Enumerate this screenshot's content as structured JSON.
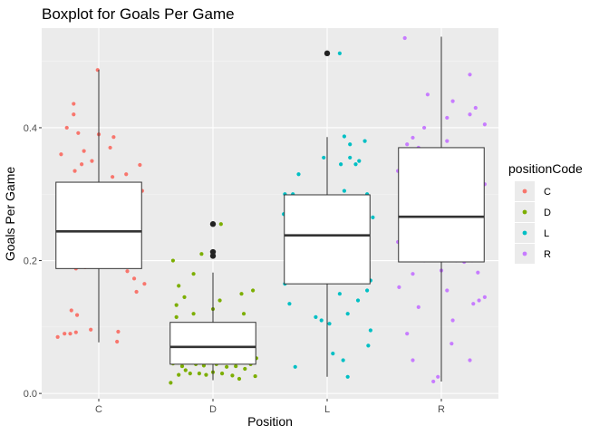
{
  "chart_data": {
    "type": "boxplot",
    "title": "Boxplot for Goals Per Game",
    "xlabel": "Position",
    "ylabel": "Goals Per Game",
    "categories": [
      "C",
      "D",
      "L",
      "R"
    ],
    "yticks": [
      0.0,
      0.2,
      0.4
    ],
    "ytick_labels": [
      "0.0",
      "0.2",
      "0.4"
    ],
    "ylim": [
      -0.008,
      0.55
    ],
    "grid": true,
    "legend": {
      "title": "positionCode",
      "position": "right",
      "entries": [
        "C",
        "D",
        "L",
        "R"
      ]
    },
    "colors": {
      "C": "#F8766D",
      "D": "#7CAE00",
      "L": "#00BFC4",
      "R": "#C77CFF",
      "outlier": "#222222"
    },
    "boxes": [
      {
        "name": "C",
        "q1": 0.188,
        "median": 0.244,
        "q3": 0.318,
        "whisker_low": 0.077,
        "whisker_high": 0.487,
        "outliers": []
      },
      {
        "name": "D",
        "q1": 0.044,
        "median": 0.07,
        "q3": 0.107,
        "whisker_low": 0.02,
        "whisker_high": 0.182,
        "outliers": [
          0.255,
          0.213,
          0.207
        ]
      },
      {
        "name": "L",
        "q1": 0.165,
        "median": 0.238,
        "q3": 0.299,
        "whisker_low": 0.025,
        "whisker_high": 0.386,
        "outliers": [
          0.512
        ]
      },
      {
        "name": "R",
        "q1": 0.198,
        "median": 0.266,
        "q3": 0.37,
        "whisker_low": 0.018,
        "whisker_high": 0.537,
        "outliers": []
      }
    ],
    "points": {
      "C": [
        [
          -0.36,
          0.085
        ],
        [
          -0.3,
          0.09
        ],
        [
          -0.25,
          0.09
        ],
        [
          -0.2,
          0.092
        ],
        [
          -0.07,
          0.096
        ],
        [
          0.16,
          0.078
        ],
        [
          0.17,
          0.093
        ],
        [
          -0.24,
          0.125
        ],
        [
          -0.19,
          0.118
        ],
        [
          0.33,
          0.153
        ],
        [
          0.4,
          0.165
        ],
        [
          0.31,
          0.173
        ],
        [
          0.25,
          0.184
        ],
        [
          -0.2,
          0.188
        ],
        [
          -0.12,
          0.19
        ],
        [
          -0.03,
          0.192
        ],
        [
          0.04,
          0.191
        ],
        [
          0.1,
          0.194
        ],
        [
          0.18,
          0.197
        ],
        [
          -0.15,
          0.2
        ],
        [
          0.05,
          0.205
        ],
        [
          -0.05,
          0.21
        ],
        [
          0.27,
          0.215
        ],
        [
          -0.28,
          0.23
        ],
        [
          0.1,
          0.225
        ],
        [
          -0.33,
          0.24
        ],
        [
          0.36,
          0.246
        ],
        [
          -0.11,
          0.232
        ],
        [
          0.0,
          0.235
        ],
        [
          0.2,
          0.228
        ],
        [
          -0.18,
          0.26
        ],
        [
          -0.07,
          0.265
        ],
        [
          0.13,
          0.262
        ],
        [
          0.31,
          0.255
        ],
        [
          -0.25,
          0.275
        ],
        [
          0.03,
          0.28
        ],
        [
          -0.15,
          0.295
        ],
        [
          0.38,
          0.305
        ],
        [
          0.07,
          0.3
        ],
        [
          0.3,
          0.31
        ],
        [
          -0.03,
          0.315
        ],
        [
          0.12,
          0.326
        ],
        [
          0.24,
          0.33
        ],
        [
          -0.21,
          0.335
        ],
        [
          0.36,
          0.344
        ],
        [
          -0.15,
          0.345
        ],
        [
          -0.06,
          0.35
        ],
        [
          -0.33,
          0.36
        ],
        [
          0.1,
          0.37
        ],
        [
          -0.13,
          0.365
        ],
        [
          0.13,
          0.386
        ],
        [
          -0.18,
          0.392
        ],
        [
          0.0,
          0.39
        ],
        [
          -0.28,
          0.4
        ],
        [
          -0.22,
          0.42
        ],
        [
          -0.22,
          0.436
        ],
        [
          -0.01,
          0.487
        ]
      ],
      "D": [
        [
          -0.37,
          0.016
        ],
        [
          -0.3,
          0.028
        ],
        [
          -0.24,
          0.035
        ],
        [
          -0.2,
          0.03
        ],
        [
          -0.12,
          0.03
        ],
        [
          -0.06,
          0.028
        ],
        [
          0.0,
          0.032
        ],
        [
          0.08,
          0.03
        ],
        [
          0.17,
          0.027
        ],
        [
          0.23,
          0.022
        ],
        [
          0.37,
          0.026
        ],
        [
          -0.35,
          0.045
        ],
        [
          -0.27,
          0.041
        ],
        [
          -0.15,
          0.044
        ],
        [
          -0.08,
          0.042
        ],
        [
          0.03,
          0.044
        ],
        [
          0.12,
          0.04
        ],
        [
          0.2,
          0.041
        ],
        [
          0.28,
          0.037
        ],
        [
          0.33,
          0.044
        ],
        [
          -0.31,
          0.055
        ],
        [
          -0.21,
          0.057
        ],
        [
          -0.1,
          0.052
        ],
        [
          -0.02,
          0.058
        ],
        [
          0.07,
          0.052
        ],
        [
          0.15,
          0.057
        ],
        [
          0.25,
          0.052
        ],
        [
          0.38,
          0.053
        ],
        [
          -0.33,
          0.065
        ],
        [
          -0.25,
          0.062
        ],
        [
          -0.13,
          0.068
        ],
        [
          -0.05,
          0.062
        ],
        [
          0.05,
          0.065
        ],
        [
          0.13,
          0.068
        ],
        [
          0.21,
          0.064
        ],
        [
          0.3,
          0.066
        ],
        [
          -0.29,
          0.075
        ],
        [
          -0.19,
          0.077
        ],
        [
          -0.07,
          0.072
        ],
        [
          0.02,
          0.075
        ],
        [
          0.1,
          0.078
        ],
        [
          0.18,
          0.073
        ],
        [
          0.27,
          0.076
        ],
        [
          -0.34,
          0.085
        ],
        [
          -0.22,
          0.088
        ],
        [
          -0.1,
          0.085
        ],
        [
          0.0,
          0.09
        ],
        [
          0.1,
          0.087
        ],
        [
          0.24,
          0.082
        ],
        [
          -0.3,
          0.097
        ],
        [
          -0.15,
          0.1
        ],
        [
          0.05,
          0.098
        ],
        [
          0.2,
          0.095
        ],
        [
          -0.32,
          0.115
        ],
        [
          -0.17,
          0.12
        ],
        [
          0.0,
          0.127
        ],
        [
          0.27,
          0.12
        ],
        [
          -0.32,
          0.133
        ],
        [
          -0.25,
          0.145
        ],
        [
          0.06,
          0.14
        ],
        [
          0.25,
          0.15
        ],
        [
          0.35,
          0.155
        ],
        [
          -0.3,
          0.162
        ],
        [
          -0.17,
          0.18
        ],
        [
          -0.35,
          0.2
        ],
        [
          -0.1,
          0.21
        ],
        [
          0.07,
          0.255
        ]
      ],
      "L": [
        [
          -0.28,
          0.04
        ],
        [
          0.05,
          0.06
        ],
        [
          0.14,
          0.05
        ],
        [
          0.18,
          0.025
        ],
        [
          0.36,
          0.072
        ],
        [
          0.38,
          0.095
        ],
        [
          -0.05,
          0.11
        ],
        [
          -0.1,
          0.115
        ],
        [
          0.02,
          0.105
        ],
        [
          0.18,
          0.12
        ],
        [
          0.27,
          0.14
        ],
        [
          -0.33,
          0.135
        ],
        [
          0.11,
          0.15
        ],
        [
          0.35,
          0.155
        ],
        [
          0.38,
          0.17
        ],
        [
          -0.37,
          0.165
        ],
        [
          0.22,
          0.175
        ],
        [
          -0.25,
          0.18
        ],
        [
          -0.15,
          0.19
        ],
        [
          0.08,
          0.2
        ],
        [
          0.15,
          0.195
        ],
        [
          0.33,
          0.2
        ],
        [
          -0.2,
          0.21
        ],
        [
          0.0,
          0.215
        ],
        [
          -0.35,
          0.225
        ],
        [
          0.12,
          0.225
        ],
        [
          -0.08,
          0.235
        ],
        [
          0.03,
          0.24
        ],
        [
          0.2,
          0.245
        ],
        [
          -0.32,
          0.25
        ],
        [
          -0.25,
          0.26
        ],
        [
          0.12,
          0.255
        ],
        [
          0.4,
          0.265
        ],
        [
          -0.38,
          0.27
        ],
        [
          0.28,
          0.28
        ],
        [
          -0.12,
          0.285
        ],
        [
          -0.3,
          0.3
        ],
        [
          -0.37,
          0.3
        ],
        [
          0.15,
          0.305
        ],
        [
          0.35,
          0.3
        ],
        [
          -0.25,
          0.33
        ],
        [
          0.12,
          0.345
        ],
        [
          0.2,
          0.355
        ],
        [
          0.28,
          0.35
        ],
        [
          -0.03,
          0.355
        ],
        [
          0.2,
          0.375
        ],
        [
          0.33,
          0.38
        ],
        [
          0.15,
          0.387
        ],
        [
          0.25,
          0.345
        ],
        [
          0.11,
          0.512
        ]
      ],
      "R": [
        [
          -0.07,
          0.018
        ],
        [
          -0.03,
          0.025
        ],
        [
          -0.25,
          0.05
        ],
        [
          0.25,
          0.05
        ],
        [
          0.09,
          0.075
        ],
        [
          -0.3,
          0.09
        ],
        [
          0.1,
          0.11
        ],
        [
          0.33,
          0.14
        ],
        [
          -0.2,
          0.13
        ],
        [
          0.28,
          0.135
        ],
        [
          -0.37,
          0.16
        ],
        [
          0.05,
          0.155
        ],
        [
          0.38,
          0.145
        ],
        [
          -0.25,
          0.18
        ],
        [
          0.0,
          0.185
        ],
        [
          0.32,
          0.182
        ],
        [
          0.13,
          0.2
        ],
        [
          0.2,
          0.198
        ],
        [
          0.27,
          0.2
        ],
        [
          -0.15,
          0.2
        ],
        [
          0.03,
          0.215
        ],
        [
          0.32,
          0.235
        ],
        [
          -0.38,
          0.228
        ],
        [
          0.25,
          0.25
        ],
        [
          -0.22,
          0.255
        ],
        [
          -0.1,
          0.262
        ],
        [
          -0.05,
          0.265
        ],
        [
          0.12,
          0.262
        ],
        [
          -0.3,
          0.265
        ],
        [
          0.07,
          0.278
        ],
        [
          0.35,
          0.283
        ],
        [
          -0.35,
          0.29
        ],
        [
          0.2,
          0.3
        ],
        [
          -0.15,
          0.305
        ],
        [
          0.38,
          0.315
        ],
        [
          -0.27,
          0.32
        ],
        [
          -0.05,
          0.33
        ],
        [
          -0.38,
          0.335
        ],
        [
          0.08,
          0.337
        ],
        [
          0.23,
          0.35
        ],
        [
          -0.1,
          0.36
        ],
        [
          0.33,
          0.36
        ],
        [
          -0.2,
          0.37
        ],
        [
          0.12,
          0.365
        ],
        [
          -0.3,
          0.375
        ],
        [
          -0.25,
          0.385
        ],
        [
          0.05,
          0.38
        ],
        [
          -0.15,
          0.4
        ],
        [
          0.38,
          0.405
        ],
        [
          0.25,
          0.42
        ],
        [
          0.05,
          0.415
        ],
        [
          0.3,
          0.43
        ],
        [
          0.1,
          0.44
        ],
        [
          -0.12,
          0.45
        ],
        [
          0.25,
          0.48
        ],
        [
          -0.32,
          0.535
        ]
      ]
    }
  }
}
